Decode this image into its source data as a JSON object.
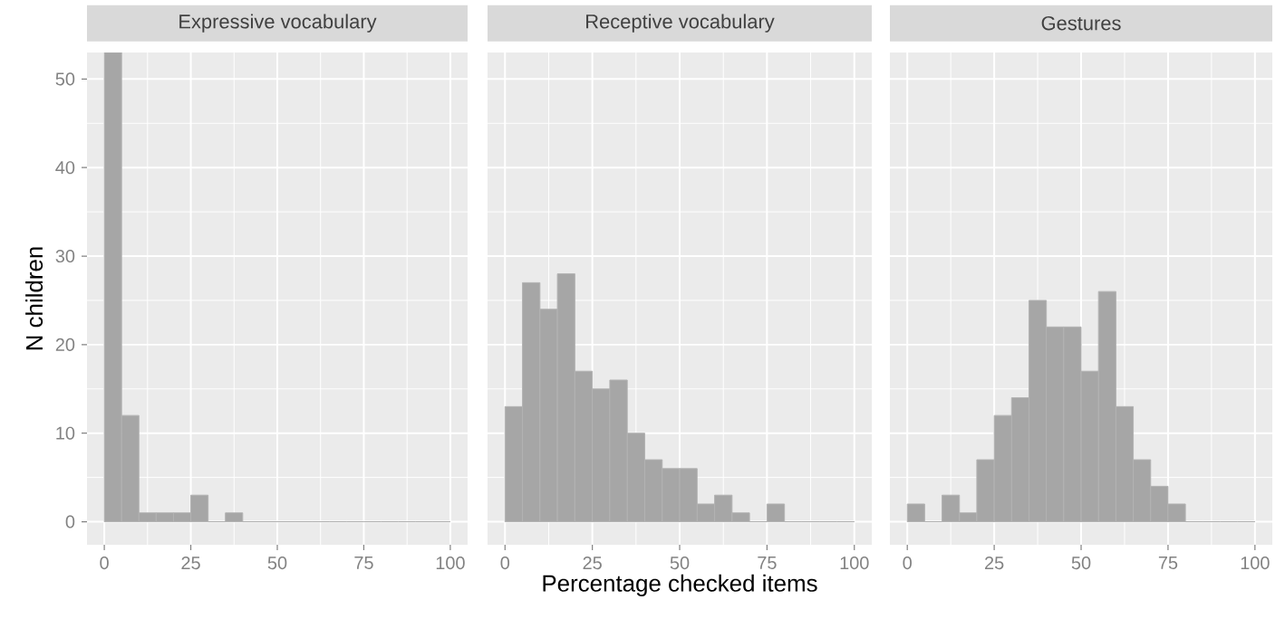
{
  "chart_data": [
    {
      "type": "histogram",
      "title": "Expressive vocabulary",
      "ylabel": "N children",
      "color": "#a6a6a6",
      "grid": true,
      "bins": [
        0,
        5,
        10,
        15,
        20,
        25,
        30,
        35,
        40,
        45,
        50,
        55,
        60,
        65,
        70,
        75,
        80,
        85,
        90,
        95,
        100
      ],
      "values": [
        53,
        12,
        1,
        1,
        1,
        3,
        0,
        1,
        0,
        0,
        0,
        0,
        0,
        0,
        0,
        0,
        0,
        0,
        0,
        0
      ],
      "xlim": [
        -5,
        105
      ],
      "ylim": [
        -2.6,
        53
      ],
      "xticks": [
        0,
        25,
        50,
        75,
        100
      ],
      "yticks": [
        0,
        10,
        20,
        30,
        40,
        50
      ]
    },
    {
      "type": "histogram",
      "title": "Receptive vocabulary",
      "xlabel": "Percentage checked items",
      "color": "#a6a6a6",
      "grid": true,
      "bins": [
        0,
        5,
        10,
        15,
        20,
        25,
        30,
        35,
        40,
        45,
        50,
        55,
        60,
        65,
        70,
        75,
        80,
        85,
        90,
        95,
        100
      ],
      "values": [
        13,
        27,
        24,
        28,
        17,
        15,
        16,
        10,
        7,
        6,
        6,
        2,
        3,
        1,
        0,
        2,
        0,
        0,
        0,
        0
      ],
      "xlim": [
        -5,
        105
      ],
      "ylim": [
        -2.6,
        53
      ],
      "xticks": [
        0,
        25,
        50,
        75,
        100
      ],
      "yticks": [
        0,
        10,
        20,
        30,
        40,
        50
      ],
      "tick_labels": "x"
    },
    {
      "type": "histogram",
      "title": "Gestures",
      "color": "#a6a6a6",
      "grid": true,
      "bins": [
        0,
        5,
        10,
        15,
        20,
        25,
        30,
        35,
        40,
        45,
        50,
        55,
        60,
        65,
        70,
        75,
        80,
        85,
        90,
        95,
        100
      ],
      "values": [
        2,
        0,
        3,
        1,
        7,
        12,
        14,
        25,
        22,
        22,
        17,
        26,
        13,
        7,
        4,
        2,
        0,
        0,
        0,
        0
      ],
      "xlim": [
        -5,
        105
      ],
      "ylim": [
        -2.6,
        53
      ],
      "xticks": [
        0,
        25,
        50,
        75,
        100
      ],
      "yticks": [
        0,
        10,
        20,
        30,
        40,
        50
      ],
      "tick_labels": "x"
    }
  ]
}
